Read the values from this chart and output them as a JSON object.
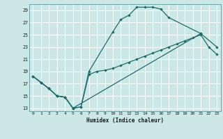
{
  "xlabel": "Humidex (Indice chaleur)",
  "background_color": "#cce8e6",
  "grid_color": "#b0d8d4",
  "line_color": "#1a6b6b",
  "xlim": [
    -0.5,
    23.5
  ],
  "ylim": [
    12.5,
    30.0
  ],
  "xticks": [
    0,
    1,
    2,
    3,
    4,
    5,
    6,
    7,
    8,
    9,
    10,
    11,
    12,
    13,
    14,
    15,
    16,
    17,
    18,
    19,
    20,
    21,
    22,
    23
  ],
  "yticks": [
    13,
    15,
    17,
    19,
    21,
    23,
    25,
    27,
    29
  ],
  "line1_x": [
    0,
    1,
    2,
    3,
    4,
    5,
    6,
    7,
    8,
    9,
    10,
    11,
    12,
    13,
    14,
    15,
    16,
    17,
    18,
    19,
    20,
    21,
    22,
    23
  ],
  "line1_y": [
    18.2,
    17.2,
    16.2,
    15.0,
    14.8,
    13.0,
    13.2,
    18.5,
    19.0,
    19.2,
    19.5,
    20.0,
    20.5,
    21.0,
    21.5,
    22.0,
    22.5,
    23.0,
    23.5,
    24.0,
    24.5,
    25.0,
    23.0,
    21.8
  ],
  "line2_x": [
    0,
    1,
    2,
    3,
    4,
    5,
    6,
    7,
    10,
    11,
    12,
    13,
    14,
    15,
    16,
    17,
    21
  ],
  "line2_y": [
    18.2,
    17.2,
    16.2,
    15.0,
    14.8,
    13.0,
    13.2,
    19.0,
    25.5,
    27.5,
    28.2,
    29.5,
    29.5,
    29.5,
    29.2,
    27.8,
    25.2
  ],
  "line3_x": [
    0,
    1,
    2,
    3,
    4,
    5,
    21,
    23
  ],
  "line3_y": [
    18.2,
    17.2,
    16.2,
    15.0,
    14.8,
    13.0,
    25.2,
    23.0
  ]
}
